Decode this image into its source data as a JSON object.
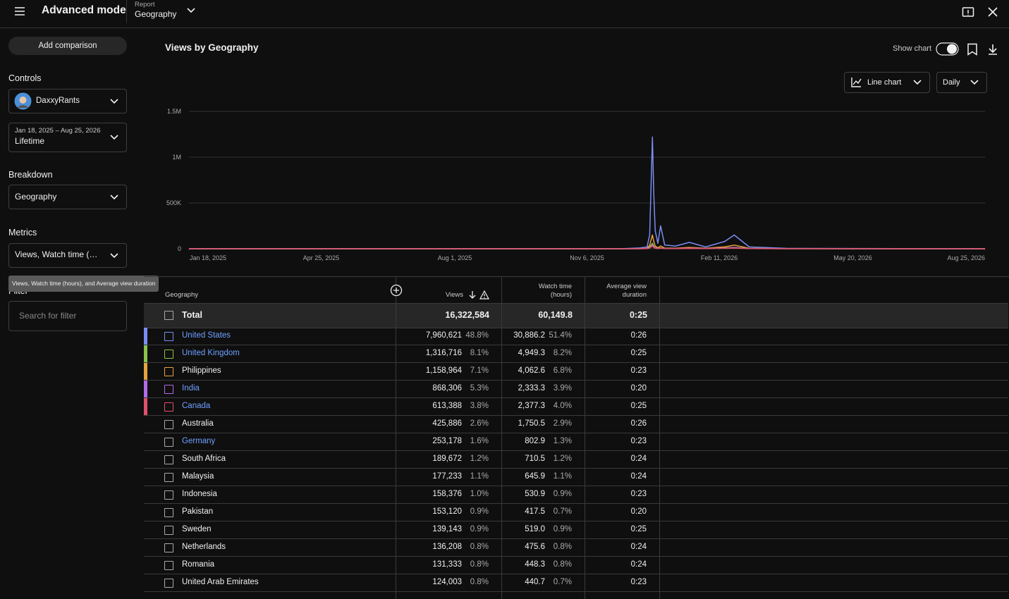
{
  "header": {
    "title": "Advanced mode",
    "report_label": "Report",
    "report": "Geography"
  },
  "sidebar": {
    "add_comparison": "Add comparison",
    "controls": "Controls",
    "channel": "DaxxyRants",
    "date_range": "Jan 18, 2025 – Aug 25, 2026",
    "period": "Lifetime",
    "breakdown": "Breakdown",
    "breakdown_value": "Geography",
    "metrics": "Metrics",
    "metrics_value": "Views, Watch time (…",
    "tooltip": "Views, Watch time (hours), and Average view duration",
    "filter": "Filter",
    "filter_placeholder": "Search for filter"
  },
  "toolbar": {
    "show_chart": "Show chart",
    "chart_type": "Line chart",
    "interval": "Daily"
  },
  "chart_data": {
    "type": "line",
    "title": "Views by Geography",
    "x": [
      "Jan 18, 2025",
      "Dec 1, 2025",
      "Dec 15, 2025",
      "Dec 20, 2025",
      "Dec 22, 2025",
      "Dec 24, 2025",
      "Dec 25, 2025",
      "Dec 26, 2025",
      "Dec 28, 2025",
      "Dec 30, 2025",
      "Jan 2, 2026",
      "Jan 10, 2026",
      "Jan 20, 2026",
      "Feb 1, 2026",
      "Feb 15, 2026",
      "Feb 22, 2026",
      "Mar 5, 2026",
      "Apr 1, 2026",
      "Aug 25, 2026"
    ],
    "xlim": [
      "Jan 18, 2025",
      "Aug 25, 2026"
    ],
    "xticks": [
      "Jan 18, 2025",
      "Apr 25, 2025",
      "Aug 1, 2025",
      "Nov 6, 2025",
      "Feb 11, 2026",
      "May 20, 2026",
      "Aug 25, 2026"
    ],
    "ylim": [
      0,
      1500000
    ],
    "yticks": [
      0,
      {
        "value": 500000,
        "label": "500K"
      },
      {
        "value": 1000000,
        "label": "1M"
      },
      {
        "value": 1500000,
        "label": "1.5M"
      }
    ],
    "grid": true,
    "series": [
      {
        "color": "#7a8cf2",
        "values": [
          0,
          0,
          10000,
          20000,
          150000,
          1220000,
          600000,
          200000,
          60000,
          250000,
          40000,
          30000,
          70000,
          20000,
          80000,
          150000,
          20000,
          5000,
          0
        ]
      },
      {
        "color": "#8bc34a",
        "values": [
          0,
          0,
          1000,
          3000,
          20000,
          60000,
          30000,
          10000,
          5000,
          10000,
          5000,
          5000,
          10000,
          5000,
          10000,
          15000,
          3000,
          1000,
          0
        ]
      },
      {
        "color": "#e8a33d",
        "values": [
          0,
          0,
          2000,
          5000,
          40000,
          150000,
          80000,
          30000,
          10000,
          30000,
          8000,
          6000,
          15000,
          6000,
          20000,
          40000,
          5000,
          1000,
          0
        ]
      },
      {
        "color": "#b36be8",
        "values": [
          0,
          0,
          1000,
          2000,
          10000,
          40000,
          20000,
          8000,
          4000,
          8000,
          4000,
          3000,
          6000,
          3000,
          8000,
          12000,
          2000,
          500,
          0
        ]
      },
      {
        "color": "#e0506b",
        "values": [
          0,
          0,
          500,
          1000,
          8000,
          30000,
          15000,
          6000,
          3000,
          6000,
          3000,
          2000,
          5000,
          2000,
          6000,
          8000,
          1500,
          500,
          0
        ]
      }
    ]
  },
  "table": {
    "columns": [
      "Geography",
      "Views",
      "Watch time (hours)",
      "Average view duration"
    ],
    "total": [
      "Total",
      "16,322,584",
      "60,149.8",
      "0:25"
    ],
    "rows": [
      {
        "cells": [
          "United States",
          "7,960,621",
          "48.8%",
          "30,886.2",
          "51.4%",
          "0:26"
        ],
        "color": "#7a8cf2",
        "linked": true
      },
      {
        "cells": [
          "United Kingdom",
          "1,316,716",
          "8.1%",
          "4,949.3",
          "8.2%",
          "0:25"
        ],
        "color": "#8bc34a",
        "linked": true
      },
      {
        "cells": [
          "Philippines",
          "1,158,964",
          "7.1%",
          "4,062.6",
          "6.8%",
          "0:23"
        ],
        "color": "#e8a33d",
        "linked": false
      },
      {
        "cells": [
          "India",
          "868,306",
          "5.3%",
          "2,333.3",
          "3.9%",
          "0:20"
        ],
        "color": "#b36be8",
        "linked": true
      },
      {
        "cells": [
          "Canada",
          "613,388",
          "3.8%",
          "2,377.3",
          "4.0%",
          "0:25"
        ],
        "color": "#e0506b",
        "linked": true
      },
      {
        "cells": [
          "Australia",
          "425,886",
          "2.6%",
          "1,750.5",
          "2.9%",
          "0:26"
        ],
        "linked": false
      },
      {
        "cells": [
          "Germany",
          "253,178",
          "1.6%",
          "802.9",
          "1.3%",
          "0:23"
        ],
        "linked": true
      },
      {
        "cells": [
          "South Africa",
          "189,672",
          "1.2%",
          "710.5",
          "1.2%",
          "0:24"
        ],
        "linked": false
      },
      {
        "cells": [
          "Malaysia",
          "177,233",
          "1.1%",
          "645.9",
          "1.1%",
          "0:24"
        ],
        "linked": false
      },
      {
        "cells": [
          "Indonesia",
          "158,376",
          "1.0%",
          "530.9",
          "0.9%",
          "0:23"
        ],
        "linked": false
      },
      {
        "cells": [
          "Pakistan",
          "153,120",
          "0.9%",
          "417.5",
          "0.7%",
          "0:20"
        ],
        "linked": false
      },
      {
        "cells": [
          "Sweden",
          "139,143",
          "0.9%",
          "519.0",
          "0.9%",
          "0:25"
        ],
        "linked": false
      },
      {
        "cells": [
          "Netherlands",
          "136,208",
          "0.8%",
          "475.6",
          "0.8%",
          "0:24"
        ],
        "linked": false
      },
      {
        "cells": [
          "Romania",
          "131,333",
          "0.8%",
          "448.3",
          "0.8%",
          "0:24"
        ],
        "linked": false
      },
      {
        "cells": [
          "United Arab Emirates",
          "124,003",
          "0.8%",
          "440.7",
          "0.7%",
          "0:23"
        ],
        "linked": false
      }
    ]
  }
}
